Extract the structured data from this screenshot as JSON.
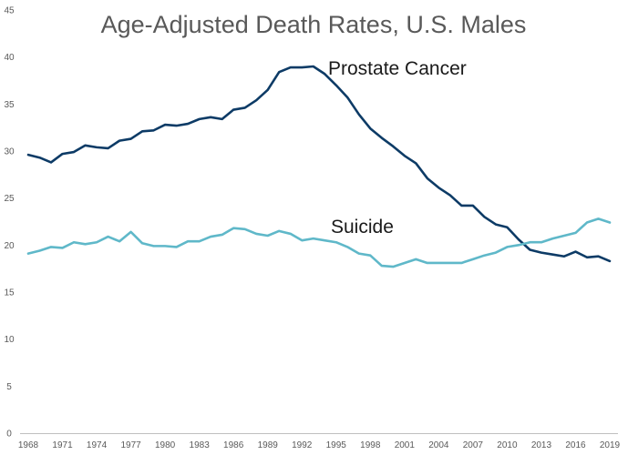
{
  "chart_data": {
    "type": "line",
    "title": "Age-Adjusted Death Rates, U.S. Males",
    "xlabel": "",
    "ylabel": "",
    "ylim": [
      0,
      45
    ],
    "yticks": [
      "0",
      "5",
      "10",
      "15",
      "20",
      "25",
      "30",
      "35",
      "40",
      "45"
    ],
    "xticks": [
      "1968",
      "1971",
      "1974",
      "1977",
      "1980",
      "1983",
      "1986",
      "1989",
      "1992",
      "1995",
      "1998",
      "2001",
      "2004",
      "2007",
      "2010",
      "2013",
      "2016",
      "2019"
    ],
    "grid": false,
    "legend": "none",
    "x": [
      1968,
      1969,
      1970,
      1971,
      1972,
      1973,
      1974,
      1975,
      1976,
      1977,
      1978,
      1979,
      1980,
      1981,
      1982,
      1983,
      1984,
      1985,
      1986,
      1987,
      1988,
      1989,
      1990,
      1991,
      1992,
      1993,
      1994,
      1995,
      1996,
      1997,
      1998,
      1999,
      2000,
      2001,
      2002,
      2003,
      2004,
      2005,
      2006,
      2007,
      2008,
      2009,
      2010,
      2011,
      2012,
      2013,
      2014,
      2015,
      2016,
      2017,
      2018,
      2019
    ],
    "series": [
      {
        "name": "Prostate Cancer",
        "color": "#0d3b66",
        "values": [
          29.6,
          29.3,
          28.8,
          29.7,
          29.9,
          30.6,
          30.4,
          30.3,
          31.1,
          31.3,
          32.1,
          32.2,
          32.8,
          32.7,
          32.9,
          33.4,
          33.6,
          33.4,
          34.4,
          34.6,
          35.4,
          36.5,
          38.4,
          38.9,
          38.9,
          39.0,
          38.2,
          37.0,
          35.7,
          33.9,
          32.4,
          31.4,
          30.5,
          29.5,
          28.7,
          27.1,
          26.1,
          25.3,
          24.2,
          24.2,
          23.0,
          22.2,
          21.9,
          20.6,
          19.5,
          19.2,
          19.0,
          18.8,
          19.3,
          18.7,
          18.8,
          18.3
        ]
      },
      {
        "name": "Suicide",
        "color": "#5fb8c9",
        "values": [
          19.1,
          19.4,
          19.8,
          19.7,
          20.3,
          20.1,
          20.3,
          20.9,
          20.4,
          21.4,
          20.2,
          19.9,
          19.9,
          19.8,
          20.4,
          20.4,
          20.9,
          21.1,
          21.8,
          21.7,
          21.2,
          21.0,
          21.5,
          21.2,
          20.5,
          20.7,
          20.5,
          20.3,
          19.8,
          19.1,
          18.9,
          17.8,
          17.7,
          18.1,
          18.5,
          18.1,
          18.1,
          18.1,
          18.1,
          18.5,
          18.9,
          19.2,
          19.8,
          20.0,
          20.3,
          20.3,
          20.7,
          21.0,
          21.3,
          22.4,
          22.8,
          22.4
        ]
      }
    ]
  }
}
